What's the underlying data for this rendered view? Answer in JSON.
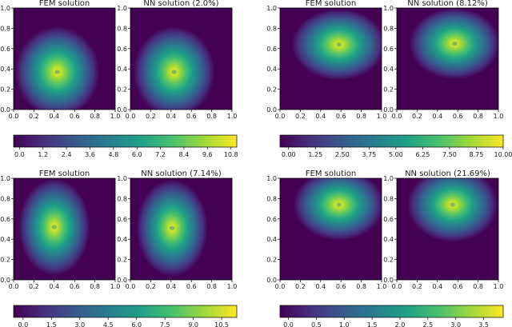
{
  "colormap": "viridis",
  "colors": {
    "viridis": [
      "#440154",
      "#46327e",
      "#365c8d",
      "#277f8e",
      "#1fa187",
      "#4ac16d",
      "#a0da39",
      "#fde725"
    ]
  },
  "x_ticks": [
    "0.0",
    "0.2",
    "0.4",
    "0.6",
    "0.8",
    "1.0"
  ],
  "y_ticks": [
    "0.0",
    "0.2",
    "0.4",
    "0.6",
    "0.8",
    "1.0"
  ],
  "chart_data": [
    {
      "type": "heatmap",
      "quadrant": "top-left",
      "panels": [
        {
          "title": "FEM solution",
          "peak": {
            "x": 0.43,
            "y": 0.37
          },
          "spread": {
            "x": 0.26,
            "y": 0.28
          }
        },
        {
          "title": "NN solution (2.0%)",
          "peak": {
            "x": 0.43,
            "y": 0.37
          },
          "spread": {
            "x": 0.25,
            "y": 0.28
          }
        }
      ],
      "xlim": [
        0,
        1
      ],
      "ylim": [
        0,
        1
      ],
      "colorbar": {
        "range": [
          -0.3,
          11.1
        ],
        "ticks": [
          "0.0",
          "1.2",
          "2.4",
          "3.6",
          "4.8",
          "6.0",
          "7.2",
          "8.4",
          "9.6",
          "10.8"
        ],
        "tick_values": [
          0,
          1.2,
          2.4,
          3.6,
          4.8,
          6.0,
          7.2,
          8.4,
          9.6,
          10.8
        ]
      }
    },
    {
      "type": "heatmap",
      "quadrant": "top-right",
      "panels": [
        {
          "title": "FEM solution",
          "peak": {
            "x": 0.58,
            "y": 0.64
          },
          "spread": {
            "x": 0.29,
            "y": 0.22
          }
        },
        {
          "title": "NN solution (8.12%)",
          "peak": {
            "x": 0.57,
            "y": 0.65
          },
          "spread": {
            "x": 0.28,
            "y": 0.22
          }
        }
      ],
      "xlim": [
        0,
        1
      ],
      "ylim": [
        0,
        1
      ],
      "colorbar": {
        "range": [
          -0.4,
          10.0
        ],
        "ticks": [
          "0.00",
          "1.25",
          "2.50",
          "3.75",
          "5.00",
          "6.25",
          "7.50",
          "8.75",
          "10.00"
        ],
        "tick_values": [
          0,
          1.25,
          2.5,
          3.75,
          5.0,
          6.25,
          7.5,
          8.75,
          10.0
        ]
      }
    },
    {
      "type": "heatmap",
      "quadrant": "bottom-left",
      "panels": [
        {
          "title": "FEM solution",
          "peak": {
            "x": 0.4,
            "y": 0.52
          },
          "spread": {
            "x": 0.22,
            "y": 0.3
          }
        },
        {
          "title": "NN solution (7.14%)",
          "peak": {
            "x": 0.41,
            "y": 0.51
          },
          "spread": {
            "x": 0.22,
            "y": 0.3
          }
        }
      ],
      "xlim": [
        0,
        1
      ],
      "ylim": [
        0,
        1
      ],
      "colorbar": {
        "range": [
          -0.5,
          11.3
        ],
        "ticks": [
          "0.0",
          "1.5",
          "3.0",
          "4.5",
          "6.0",
          "7.5",
          "9.0",
          "10.5"
        ],
        "tick_values": [
          0,
          1.5,
          3.0,
          4.5,
          6.0,
          7.5,
          9.0,
          10.5
        ]
      }
    },
    {
      "type": "heatmap",
      "quadrant": "bottom-right",
      "panels": [
        {
          "title": "FEM solution",
          "peak": {
            "x": 0.58,
            "y": 0.74
          },
          "spread": {
            "x": 0.28,
            "y": 0.22
          }
        },
        {
          "title": "NN solution (21.69%)",
          "peak": {
            "x": 0.55,
            "y": 0.74
          },
          "spread": {
            "x": 0.28,
            "y": 0.23
          }
        }
      ],
      "xlim": [
        0,
        1
      ],
      "ylim": [
        0,
        1
      ],
      "colorbar": {
        "range": [
          -0.15,
          3.85
        ],
        "ticks": [
          "0.0",
          "0.5",
          "1.0",
          "1.5",
          "2.0",
          "2.5",
          "3.0",
          "3.5"
        ],
        "tick_values": [
          0,
          0.5,
          1.0,
          1.5,
          2.0,
          2.5,
          3.0,
          3.5
        ]
      }
    }
  ]
}
